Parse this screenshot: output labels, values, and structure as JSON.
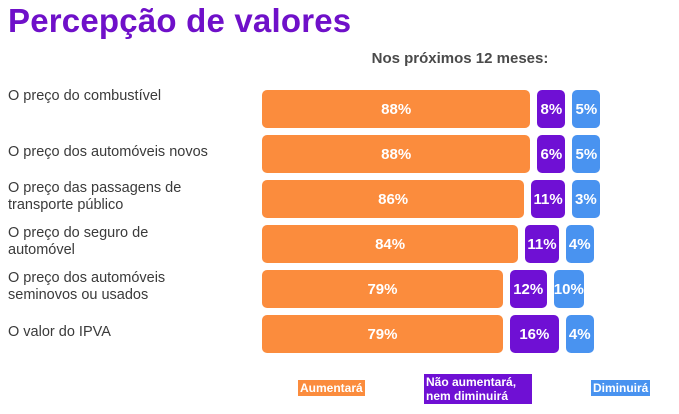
{
  "colors": {
    "aumentara": "#fb8c3d",
    "neutro": "#6f10d4",
    "diminuira": "#4993f0",
    "title": "#6f10c9"
  },
  "chart_data": {
    "type": "bar",
    "stacked": true,
    "orientation": "horizontal",
    "title": "Percepção de valores",
    "subtitle": "Nos próximos 12 meses:",
    "categories": [
      "O preço do combustível",
      "O preço dos automóveis novos",
      "O preço das passagens de transporte público",
      "O preço do seguro de automóvel",
      "O preço dos automóveis seminovos ou usados",
      "O valor do IPVA"
    ],
    "series": [
      {
        "name": "Aumentará",
        "values": [
          88,
          88,
          86,
          84,
          79,
          79
        ],
        "labels": [
          "88%",
          "88%",
          "86%",
          "84%",
          "79%",
          "79%"
        ]
      },
      {
        "name": "Não aumentará, nem diminuirá",
        "values": [
          8,
          6,
          11,
          11,
          12,
          16
        ],
        "labels": [
          "8%",
          "6%",
          "11%",
          "11%",
          "12%",
          "16%"
        ]
      },
      {
        "name": "Diminuirá",
        "values": [
          5,
          5,
          3,
          4,
          10,
          4
        ],
        "labels": [
          "5%",
          "5%",
          "3%",
          "4%",
          "10%",
          "4%"
        ]
      }
    ],
    "legend": [
      "Aumentará",
      "Não aumentará, nem diminuirá",
      "Diminuirá"
    ],
    "legend_position": "bottom"
  }
}
